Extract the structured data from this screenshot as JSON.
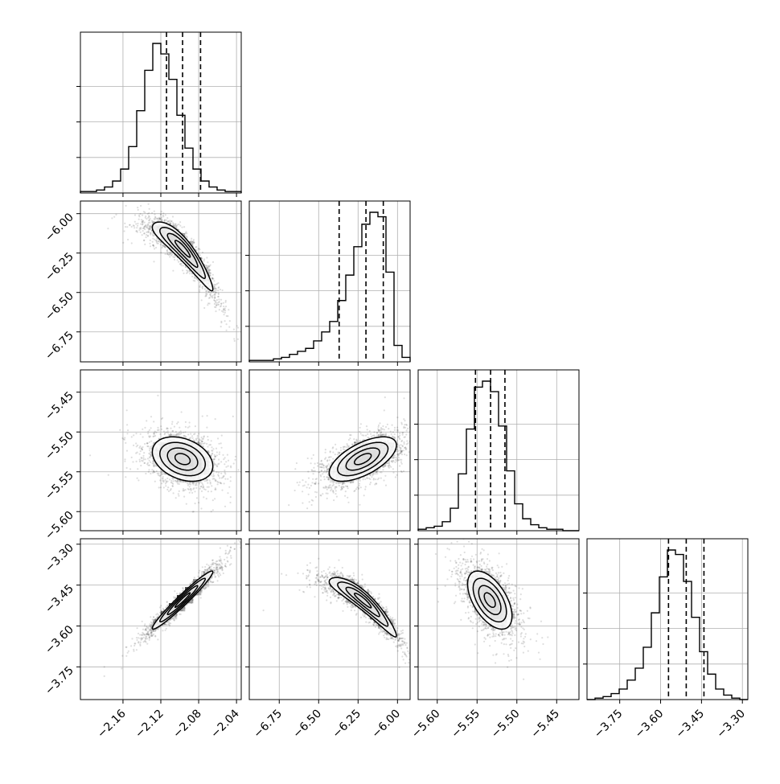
{
  "chart_data": {
    "type": "corner",
    "n_params": 4,
    "params": [
      {
        "index": 0,
        "mean": -2.097,
        "std": 0.0195,
        "q16": -2.114,
        "q50": -2.097,
        "q84": -2.078,
        "range": [
          -2.205,
          -2.035
        ],
        "ticks": [
          -2.16,
          -2.12,
          -2.08,
          -2.04
        ],
        "tick_labels": [
          "−2.16",
          "−2.12",
          "−2.08",
          "−2.04"
        ]
      },
      {
        "index": 1,
        "mean": -6.22,
        "std": 0.13,
        "q16": -6.37,
        "q50": -6.2,
        "q84": -6.09,
        "range": [
          -6.94,
          -5.92
        ],
        "ticks": [
          -6.75,
          -6.5,
          -6.25,
          -6.0
        ],
        "tick_labels": [
          "−6.75",
          "−6.50",
          "−6.25",
          "−6.00"
        ]
      },
      {
        "index": 2,
        "mean": -5.534,
        "std": 0.017,
        "q16": -5.552,
        "q50": -5.533,
        "q84": -5.515,
        "range": [
          -5.624,
          -5.422
        ],
        "ticks": [
          -5.6,
          -5.55,
          -5.5,
          -5.45
        ],
        "tick_labels": [
          "−5.60",
          "−5.55",
          "−5.50",
          "−5.45"
        ]
      },
      {
        "index": 3,
        "mean": -3.505,
        "std": 0.065,
        "q16": -3.571,
        "q50": -3.506,
        "q84": -3.441,
        "range": [
          -3.87,
          -3.28
        ],
        "ticks": [
          -3.75,
          -3.6,
          -3.45,
          -3.3
        ],
        "tick_labels": [
          "−3.75",
          "−3.60",
          "−3.45",
          "−3.30"
        ]
      }
    ],
    "histograms": [
      {
        "param": 0,
        "bins": 20,
        "counts": [
          1,
          1,
          2,
          4,
          8,
          16,
          31,
          55,
          82,
          100,
          93,
          76,
          52,
          30,
          16,
          8,
          4,
          2,
          1,
          1
        ]
      },
      {
        "param": 1,
        "bins": 20,
        "counts": [
          1,
          1,
          1,
          2,
          3,
          5,
          7,
          9,
          14,
          20,
          27,
          41,
          58,
          77,
          92,
          100,
          97,
          60,
          11,
          3
        ]
      },
      {
        "param": 2,
        "bins": 20,
        "counts": [
          1,
          2,
          3,
          6,
          15,
          38,
          68,
          96,
          100,
          93,
          70,
          40,
          18,
          8,
          4,
          2,
          1,
          1,
          0,
          0
        ]
      },
      {
        "param": 3,
        "bins": 20,
        "counts": [
          0,
          1,
          2,
          4,
          7,
          13,
          21,
          35,
          58,
          82,
          100,
          97,
          79,
          55,
          32,
          17,
          7,
          3,
          1,
          0
        ]
      }
    ],
    "correlations": [
      {
        "pair": [
          0,
          1
        ],
        "rho": -0.92,
        "curved": true
      },
      {
        "pair": [
          0,
          2
        ],
        "rho": -0.32
      },
      {
        "pair": [
          1,
          2
        ],
        "rho": 0.62
      },
      {
        "pair": [
          0,
          3
        ],
        "rho": 0.97
      },
      {
        "pair": [
          1,
          3
        ],
        "rho": -0.93,
        "curved": true
      },
      {
        "pair": [
          2,
          3
        ],
        "rho": -0.55
      }
    ],
    "contour_levels_sigma": [
      0.5,
      1.0,
      1.5,
      2.0
    ],
    "grid": true
  }
}
